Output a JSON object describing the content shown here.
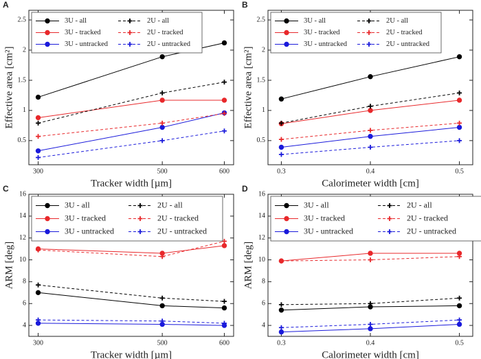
{
  "chart_data": [
    {
      "type": "line",
      "panel": "A",
      "xlabel": "Tracker width [µm]",
      "ylabel": "Effective area [cm²]",
      "x": [
        300,
        500,
        600
      ],
      "xlim": [
        285,
        615
      ],
      "xticks": [
        300,
        500,
        600
      ],
      "ylim": [
        0.1,
        2.66
      ],
      "yticks": [
        0.5,
        1,
        1.5,
        2,
        2.5
      ],
      "legend": "upper left",
      "series": [
        {
          "name": "3U - all",
          "color": "#000000",
          "dashed": false,
          "marker": "circle",
          "values": [
            1.22,
            1.89,
            2.12
          ]
        },
        {
          "name": "3U - tracked",
          "color": "#e8282b",
          "dashed": false,
          "marker": "circle",
          "values": [
            0.88,
            1.17,
            1.17
          ]
        },
        {
          "name": "3U - untracked",
          "color": "#1a1adb",
          "dashed": false,
          "marker": "circle",
          "values": [
            0.33,
            0.72,
            0.96
          ]
        },
        {
          "name": "2U - all",
          "color": "#000000",
          "dashed": true,
          "marker": "plus",
          "values": [
            0.79,
            1.29,
            1.47
          ]
        },
        {
          "name": "2U - tracked",
          "color": "#e8282b",
          "dashed": true,
          "marker": "plus",
          "values": [
            0.57,
            0.79,
            0.95
          ]
        },
        {
          "name": "2U - untracked",
          "color": "#1a1adb",
          "dashed": true,
          "marker": "plus",
          "values": [
            0.22,
            0.5,
            0.66
          ]
        }
      ]
    },
    {
      "type": "line",
      "panel": "B",
      "xlabel": "Calorimeter width [cm]",
      "ylabel": "Effective area [cm²]",
      "x": [
        0.3,
        0.4,
        0.5
      ],
      "xlim": [
        0.285,
        0.515
      ],
      "xticks": [
        0.3,
        0.4,
        0.5
      ],
      "ylim": [
        0.1,
        2.66
      ],
      "yticks": [
        0.5,
        1,
        1.5,
        2,
        2.5
      ],
      "legend": "upper left",
      "series": [
        {
          "name": "3U - all",
          "color": "#000000",
          "dashed": false,
          "marker": "circle",
          "values": [
            1.19,
            1.56,
            1.89
          ]
        },
        {
          "name": "3U - tracked",
          "color": "#e8282b",
          "dashed": false,
          "marker": "circle",
          "values": [
            0.78,
            1.0,
            1.17
          ]
        },
        {
          "name": "3U - untracked",
          "color": "#1a1adb",
          "dashed": false,
          "marker": "circle",
          "values": [
            0.39,
            0.57,
            0.72
          ]
        },
        {
          "name": "2U - all",
          "color": "#000000",
          "dashed": true,
          "marker": "plus",
          "values": [
            0.79,
            1.07,
            1.29
          ]
        },
        {
          "name": "2U - tracked",
          "color": "#e8282b",
          "dashed": true,
          "marker": "plus",
          "values": [
            0.52,
            0.67,
            0.79
          ]
        },
        {
          "name": "2U - untracked",
          "color": "#1a1adb",
          "dashed": true,
          "marker": "plus",
          "values": [
            0.27,
            0.39,
            0.5
          ]
        }
      ]
    },
    {
      "type": "line",
      "panel": "C",
      "xlabel": "Tracker width [µm]",
      "ylabel": "ARM [deg]",
      "x": [
        300,
        500,
        600
      ],
      "xlim": [
        285,
        615
      ],
      "xticks": [
        300,
        500,
        600
      ],
      "ylim": [
        3,
        16
      ],
      "yticks": [
        4,
        6,
        8,
        10,
        12,
        14,
        16
      ],
      "legend": "upper left",
      "series": [
        {
          "name": "3U - all",
          "color": "#000000",
          "dashed": false,
          "marker": "circle",
          "values": [
            7.0,
            5.8,
            5.6
          ]
        },
        {
          "name": "3U - tracked",
          "color": "#e8282b",
          "dashed": false,
          "marker": "circle",
          "values": [
            11.0,
            10.6,
            11.3
          ]
        },
        {
          "name": "3U - untracked",
          "color": "#1a1adb",
          "dashed": false,
          "marker": "circle",
          "values": [
            4.2,
            4.1,
            4.0
          ]
        },
        {
          "name": "2U - all",
          "color": "#000000",
          "dashed": true,
          "marker": "plus",
          "values": [
            7.7,
            6.5,
            6.2
          ]
        },
        {
          "name": "2U - tracked",
          "color": "#e8282b",
          "dashed": true,
          "marker": "plus",
          "values": [
            10.9,
            10.3,
            11.7
          ]
        },
        {
          "name": "2U - untracked",
          "color": "#1a1adb",
          "dashed": true,
          "marker": "plus",
          "values": [
            4.5,
            4.4,
            4.2
          ]
        }
      ]
    },
    {
      "type": "line",
      "panel": "D",
      "xlabel": "Calorimeter width [cm]",
      "ylabel": "ARM [deg]",
      "x": [
        0.3,
        0.4,
        0.5
      ],
      "xlim": [
        0.285,
        0.515
      ],
      "xticks": [
        0.3,
        0.4,
        0.5
      ],
      "ylim": [
        3,
        16
      ],
      "yticks": [
        4,
        6,
        8,
        10,
        12,
        14,
        16
      ],
      "legend": "upper left",
      "series": [
        {
          "name": "3U - all",
          "color": "#000000",
          "dashed": false,
          "marker": "circle",
          "values": [
            5.4,
            5.7,
            5.8
          ]
        },
        {
          "name": "3U - tracked",
          "color": "#e8282b",
          "dashed": false,
          "marker": "circle",
          "values": [
            9.9,
            10.6,
            10.6
          ]
        },
        {
          "name": "3U - untracked",
          "color": "#1a1adb",
          "dashed": false,
          "marker": "circle",
          "values": [
            3.4,
            3.7,
            4.1
          ]
        },
        {
          "name": "2U - all",
          "color": "#000000",
          "dashed": true,
          "marker": "plus",
          "values": [
            5.9,
            6.0,
            6.5
          ]
        },
        {
          "name": "2U - tracked",
          "color": "#e8282b",
          "dashed": true,
          "marker": "plus",
          "values": [
            9.9,
            10.0,
            10.3
          ]
        },
        {
          "name": "2U - untracked",
          "color": "#1a1adb",
          "dashed": true,
          "marker": "plus",
          "values": [
            3.8,
            4.1,
            4.5
          ]
        }
      ]
    }
  ]
}
